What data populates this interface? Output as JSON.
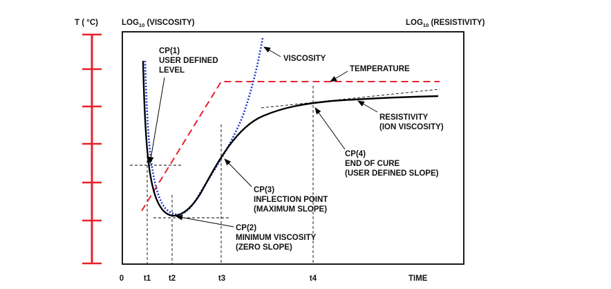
{
  "axis_labels": {
    "left_axis": "T ( °C)",
    "viscosity_axis_prefix": "LOG",
    "viscosity_axis_sub": "10",
    "viscosity_axis_suffix": " (VISCOSITY)",
    "resistivity_axis_prefix": "LOG",
    "resistivity_axis_sub": "10",
    "resistivity_axis_suffix": " (RESISTIVITY)",
    "time_axis": "TIME"
  },
  "x_ticks": [
    "0",
    "t1",
    "t2",
    "t3",
    "t4"
  ],
  "curves": {
    "viscosity": "VISCOSITY",
    "temperature": "TEMPERATURE",
    "resistivity_line1": "RESISTIVITY",
    "resistivity_line2": "(ION VISCOSITY)"
  },
  "critical_points": {
    "cp1": [
      "CP(1)",
      "USER DEFINED",
      "LEVEL"
    ],
    "cp2": [
      "CP(2)",
      "MINIMUM VISCOSITY",
      "(ZERO SLOPE)"
    ],
    "cp3": [
      "CP(3)",
      "INFLECTION POINT",
      "(MAXIMUM SLOPE)"
    ],
    "cp4": [
      "CP(4)",
      "END OF CURE",
      "(USER DEFINED SLOPE)"
    ]
  },
  "colors": {
    "temperature_axis": "#e8202a",
    "temperature_curve": "#e8202a",
    "viscosity_curve": "#1a2fd0",
    "resistivity_curve": "#000000"
  }
}
